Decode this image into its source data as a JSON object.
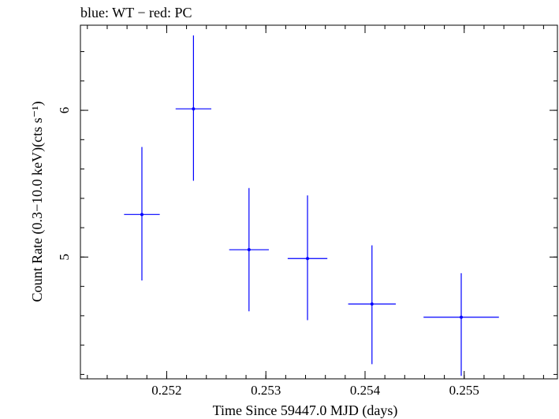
{
  "chart_data": {
    "type": "scatter",
    "title": "blue: WT − red: PC",
    "xlabel": "Time Since 59447.0 MJD (days)",
    "ylabel": "Count Rate (0.3−10.0 keV)(cts s⁻¹)",
    "xlim": [
      0.25113,
      0.25594
    ],
    "ylim": [
      4.17,
      6.58
    ],
    "x_ticks": [
      "0.252",
      "0.253",
      "0.254",
      "0.255"
    ],
    "x_tick_values": [
      0.252,
      0.253,
      0.254,
      0.255
    ],
    "y_ticks": [
      "5",
      "6"
    ],
    "y_tick_values": [
      5,
      6
    ],
    "grid": false,
    "series": [
      {
        "name": "WT",
        "color": "#0000ff",
        "points": [
          {
            "x": 0.25175,
            "xerr": 0.00018,
            "y": 5.29,
            "yerr_low": 0.45,
            "yerr_high": 0.46
          },
          {
            "x": 0.25227,
            "xerr": 0.00018,
            "y": 6.01,
            "yerr_low": 0.49,
            "yerr_high": 0.5
          },
          {
            "x": 0.25283,
            "xerr": 0.0002,
            "y": 5.05,
            "yerr_low": 0.42,
            "yerr_high": 0.42
          },
          {
            "x": 0.25342,
            "xerr": 0.0002,
            "y": 4.99,
            "yerr_low": 0.42,
            "yerr_high": 0.43
          },
          {
            "x": 0.25407,
            "xerr": 0.00024,
            "y": 4.68,
            "yerr_low": 0.41,
            "yerr_high": 0.4
          },
          {
            "x": 0.25497,
            "xerr": 0.00038,
            "y": 4.59,
            "yerr_low": 0.4,
            "yerr_high": 0.3
          }
        ]
      }
    ]
  }
}
